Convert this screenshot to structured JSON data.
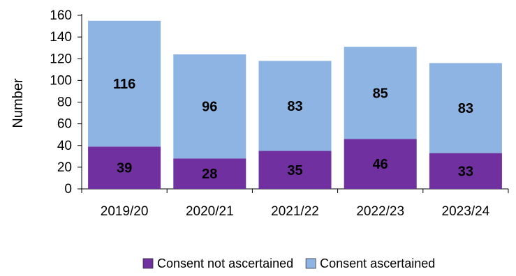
{
  "chart_data": {
    "type": "bar",
    "stacked": true,
    "categories": [
      "2019/20",
      "2020/21",
      "2021/22",
      "2022/23",
      "2023/24"
    ],
    "series": [
      {
        "name": "Consent not ascertained",
        "values": [
          39,
          28,
          35,
          46,
          33
        ],
        "color": "#7030a0"
      },
      {
        "name": "Consent ascertained",
        "values": [
          116,
          96,
          83,
          85,
          83
        ],
        "color": "#8eb4e3"
      }
    ],
    "ylabel": "Number",
    "xlabel": "",
    "ylim": [
      0,
      160
    ],
    "yticks": [
      0,
      20,
      40,
      60,
      80,
      100,
      120,
      140,
      160
    ],
    "grid": false,
    "legend_position": "bottom"
  }
}
